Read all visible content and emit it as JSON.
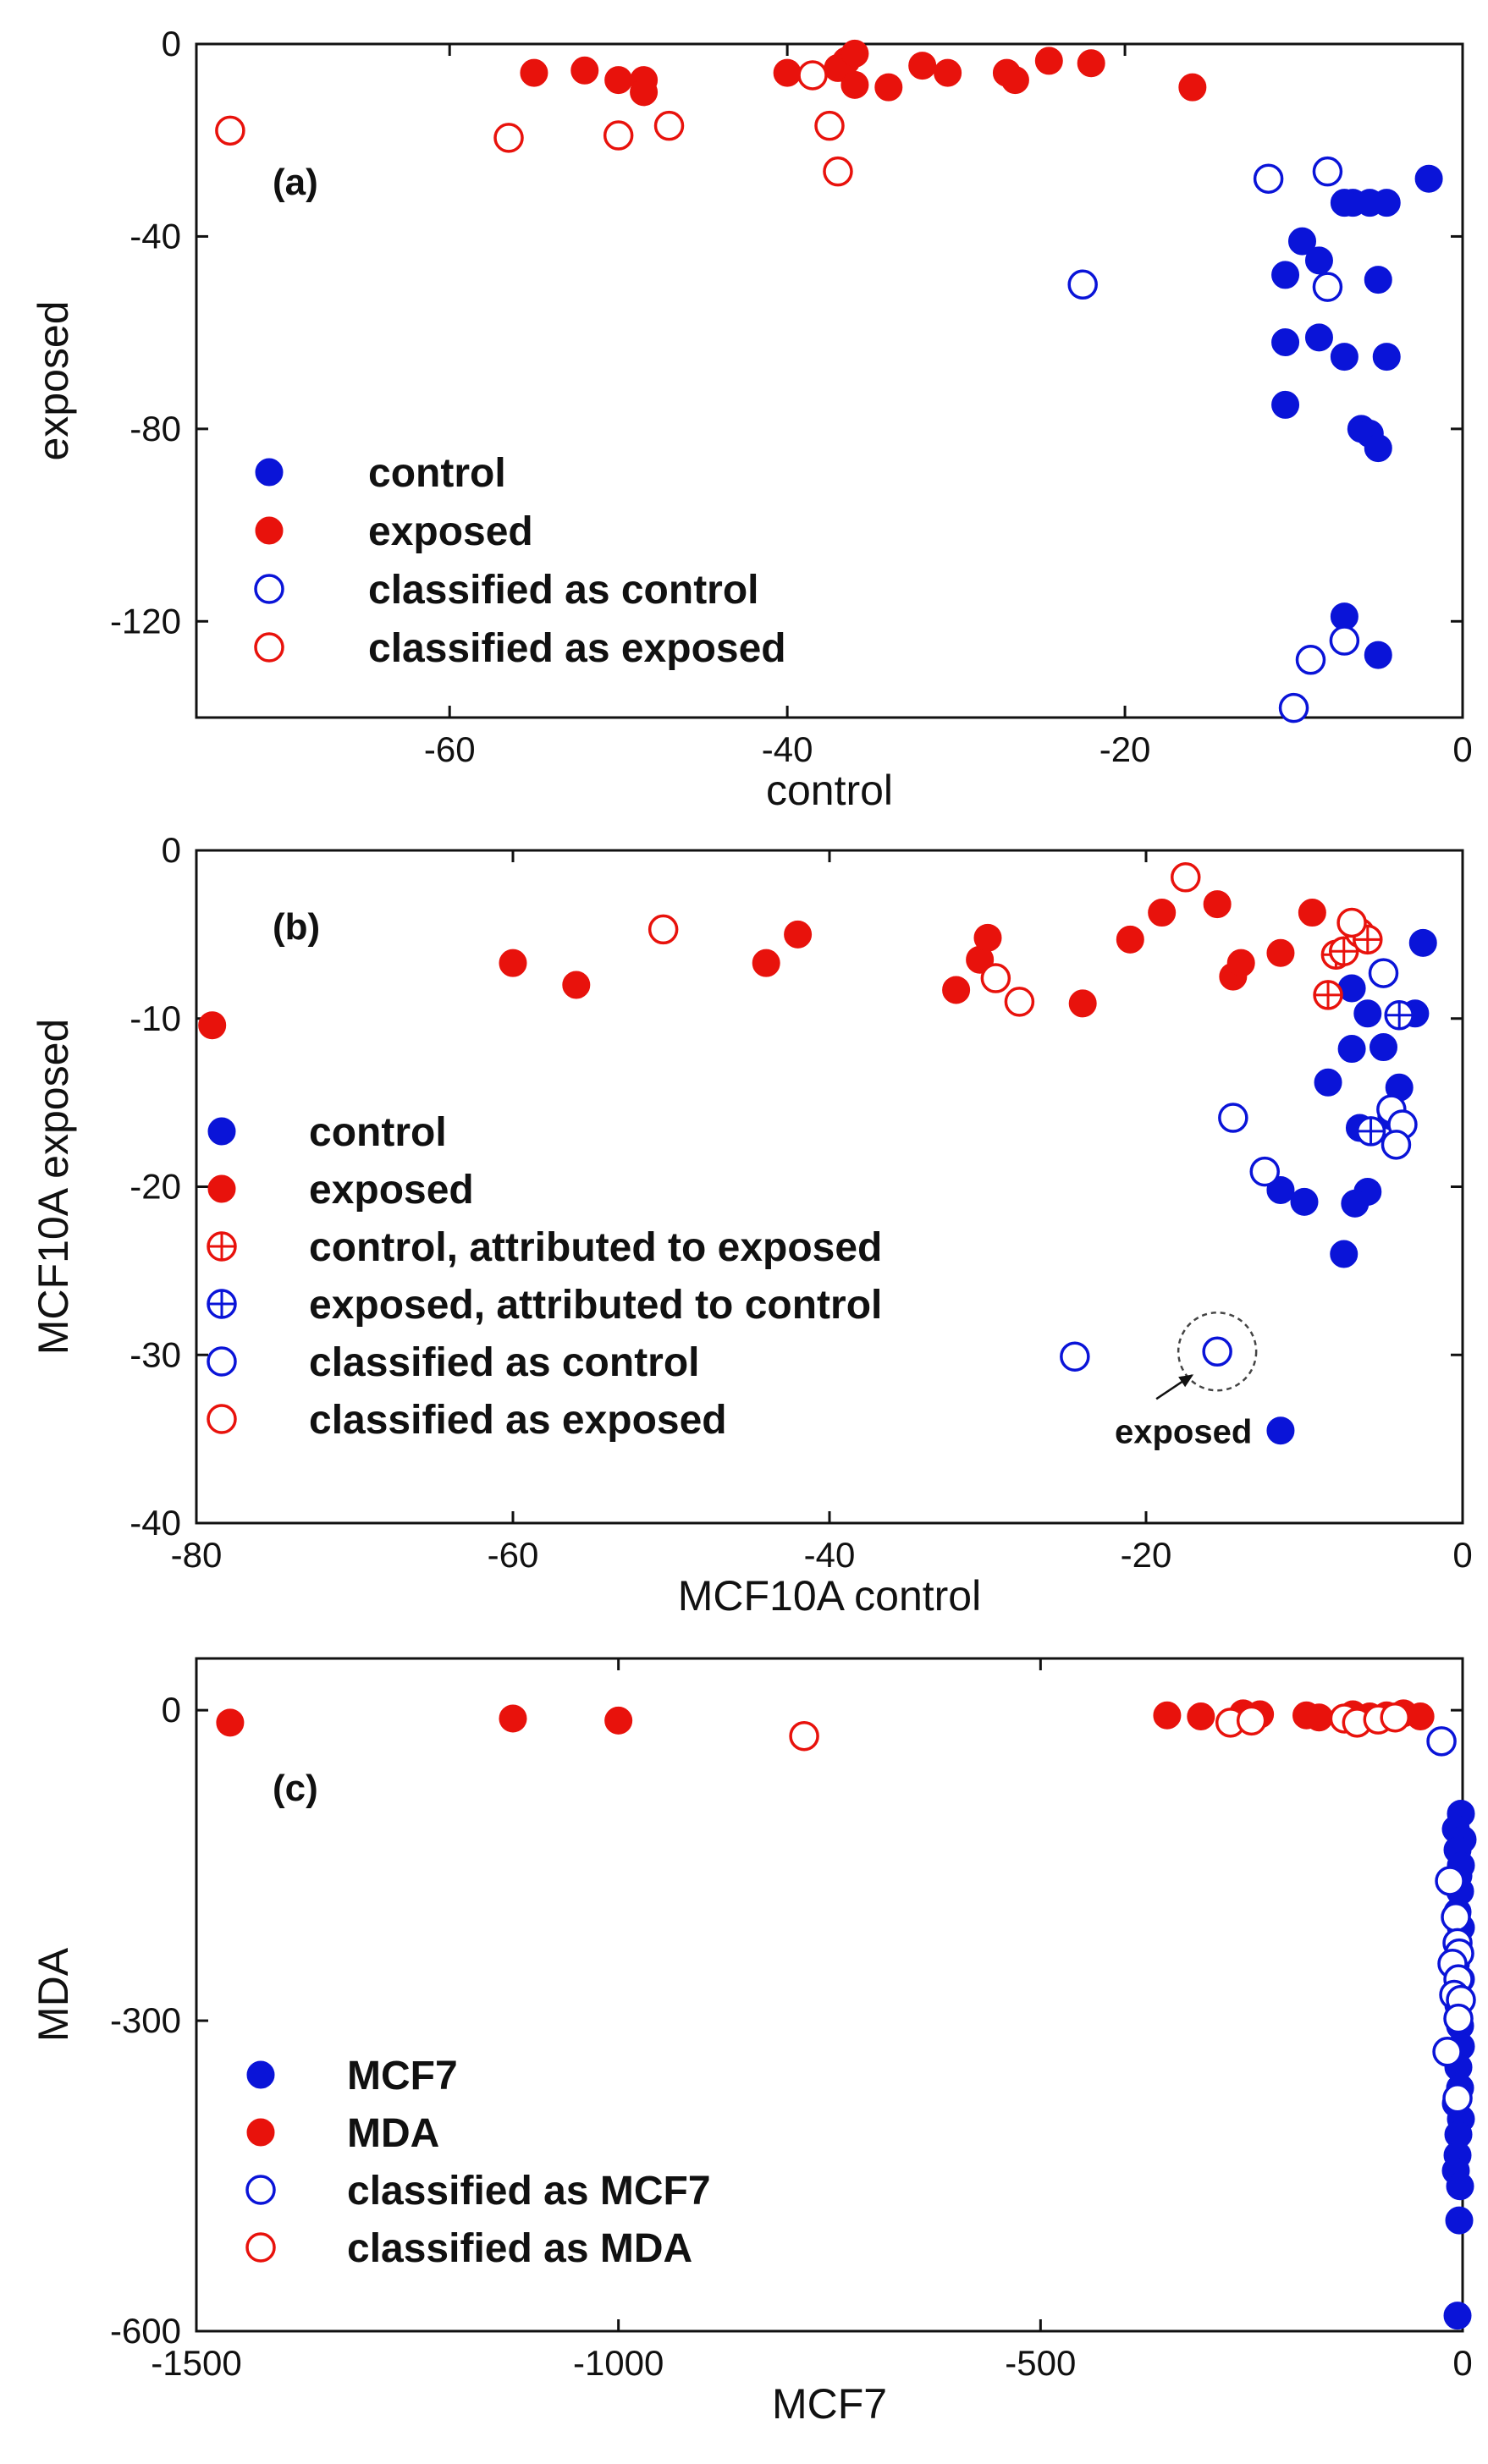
{
  "colors": {
    "control": "#0a14d8",
    "exposed": "#e8120c",
    "frame": "#111111",
    "circle": "#444444"
  },
  "chart_data": [
    {
      "id": "a",
      "type": "scatter",
      "panel_label": "(a)",
      "xlabel": "control",
      "ylabel": "exposed",
      "xlim": [
        -75,
        0
      ],
      "ylim": [
        -140,
        0
      ],
      "xticks": [
        -60,
        -40,
        -20,
        0
      ],
      "yticks": [
        0,
        -40,
        -80,
        -120
      ],
      "legend": [
        {
          "label": "control",
          "color": "control",
          "filled": true,
          "cross": false
        },
        {
          "label": "exposed",
          "color": "exposed",
          "filled": true,
          "cross": false
        },
        {
          "label": "classified as control",
          "color": "control",
          "filled": false,
          "cross": false
        },
        {
          "label": "classified as exposed",
          "color": "exposed",
          "filled": false,
          "cross": false
        }
      ],
      "series": [
        {
          "name": "control",
          "color": "control",
          "filled": true,
          "cross": false,
          "points": [
            [
              -2,
              -28
            ],
            [
              -4.5,
              -33
            ],
            [
              -5.5,
              -33
            ],
            [
              -6.5,
              -33
            ],
            [
              -7,
              -33
            ],
            [
              -9.5,
              -41
            ],
            [
              -10.5,
              -48
            ],
            [
              -8.5,
              -45
            ],
            [
              -5,
              -49
            ],
            [
              -10.5,
              -62
            ],
            [
              -8.5,
              -61
            ],
            [
              -7,
              -65
            ],
            [
              -4.5,
              -65
            ],
            [
              -10.5,
              -75
            ],
            [
              -6,
              -80
            ],
            [
              -5.5,
              -81
            ],
            [
              -5,
              -84
            ],
            [
              -7,
              -119
            ],
            [
              -5,
              -127
            ]
          ]
        },
        {
          "name": "exposed",
          "color": "exposed",
          "filled": true,
          "cross": false,
          "points": [
            [
              -55,
              -6
            ],
            [
              -52,
              -5.5
            ],
            [
              -50,
              -7.5
            ],
            [
              -48.5,
              -7.5
            ],
            [
              -48.5,
              -10
            ],
            [
              -40,
              -6
            ],
            [
              -37,
              -5
            ],
            [
              -36.5,
              -3.5
            ],
            [
              -36,
              -2
            ],
            [
              -36,
              -8.5
            ],
            [
              -34,
              -9
            ],
            [
              -32,
              -4.5
            ],
            [
              -30.5,
              -6
            ],
            [
              -27,
              -6
            ],
            [
              -26.5,
              -7.5
            ],
            [
              -24.5,
              -3.5
            ],
            [
              -22,
              -4
            ],
            [
              -16,
              -9
            ]
          ]
        },
        {
          "name": "classified as control",
          "color": "control",
          "filled": false,
          "cross": false,
          "points": [
            [
              -11.5,
              -28
            ],
            [
              -8,
              -26.5
            ],
            [
              -8,
              -50.5
            ],
            [
              -22.5,
              -50
            ],
            [
              -9,
              -128
            ],
            [
              -7,
              -124
            ],
            [
              -10,
              -138
            ]
          ]
        },
        {
          "name": "classified as exposed",
          "color": "exposed",
          "filled": false,
          "cross": false,
          "points": [
            [
              -73,
              -18
            ],
            [
              -56.5,
              -19.5
            ],
            [
              -50,
              -19
            ],
            [
              -47,
              -17
            ],
            [
              -38.5,
              -6.5
            ],
            [
              -37.5,
              -17
            ],
            [
              -37,
              -26.5
            ]
          ]
        }
      ]
    },
    {
      "id": "b",
      "type": "scatter",
      "panel_label": "(b)",
      "xlabel": "MCF10A control",
      "ylabel": "MCF10A exposed",
      "xlim": [
        -80,
        0
      ],
      "ylim": [
        -40,
        0
      ],
      "xticks": [
        -80,
        -60,
        -40,
        -20,
        0
      ],
      "yticks": [
        0,
        -10,
        -20,
        -30,
        -40
      ],
      "annotation": {
        "text": "exposed",
        "point": [
          -15.5,
          -29.8
        ]
      },
      "legend": [
        {
          "label": "control",
          "color": "control",
          "filled": true,
          "cross": false
        },
        {
          "label": "exposed",
          "color": "exposed",
          "filled": true,
          "cross": false
        },
        {
          "label": "control, attributed to exposed",
          "color": "exposed",
          "filled": false,
          "cross": true
        },
        {
          "label": "exposed, attributed to control",
          "color": "control",
          "filled": false,
          "cross": true
        },
        {
          "label": "classified as control",
          "color": "control",
          "filled": false,
          "cross": false
        },
        {
          "label": "classified as exposed",
          "color": "exposed",
          "filled": false,
          "cross": false
        }
      ],
      "series": [
        {
          "name": "control",
          "color": "control",
          "filled": true,
          "cross": false,
          "points": [
            [
              -2.5,
              -5.5
            ],
            [
              -7,
              -8.2
            ],
            [
              -3,
              -9.7
            ],
            [
              -6,
              -9.7
            ],
            [
              -5,
              -11.7
            ],
            [
              -7,
              -11.8
            ],
            [
              -4,
              -14.1
            ],
            [
              -8.5,
              -13.8
            ],
            [
              -4.5,
              -15.8
            ],
            [
              -6.5,
              -16.5
            ],
            [
              -11.5,
              -20.2
            ],
            [
              -10,
              -20.9
            ],
            [
              -6,
              -20.3
            ],
            [
              -6.8,
              -21
            ],
            [
              -7.5,
              -24
            ],
            [
              -11.5,
              -34.5
            ]
          ]
        },
        {
          "name": "exposed",
          "color": "exposed",
          "filled": true,
          "cross": false,
          "points": [
            [
              -79,
              -10.4
            ],
            [
              -60,
              -6.7
            ],
            [
              -56,
              -8
            ],
            [
              -44,
              -6.7
            ],
            [
              -42,
              -5
            ],
            [
              -32,
              -8.3
            ],
            [
              -30.5,
              -6.5
            ],
            [
              -30,
              -5.2
            ],
            [
              -24,
              -9.1
            ],
            [
              -21,
              -5.3
            ],
            [
              -19,
              -3.7
            ],
            [
              -15.5,
              -3.2
            ],
            [
              -14.5,
              -7.5
            ],
            [
              -14,
              -6.7
            ],
            [
              -11.5,
              -6.1
            ],
            [
              -9.5,
              -3.7
            ]
          ]
        },
        {
          "name": "control, attributed to exposed",
          "color": "exposed",
          "filled": false,
          "cross": true,
          "points": [
            [
              -8.5,
              -8.6
            ],
            [
              -8,
              -6.2
            ],
            [
              -7.5,
              -6
            ],
            [
              -6.5,
              -4.9
            ],
            [
              -6,
              -5.3
            ]
          ]
        },
        {
          "name": "exposed, attributed to control",
          "color": "control",
          "filled": false,
          "cross": true,
          "points": [
            [
              -4,
              -9.8
            ],
            [
              -5.8,
              -16.7
            ]
          ]
        },
        {
          "name": "classified as control",
          "color": "control",
          "filled": false,
          "cross": false,
          "points": [
            [
              -14.5,
              -15.9
            ],
            [
              -12.5,
              -19.1
            ],
            [
              -24.5,
              -30.1
            ],
            [
              -15.5,
              -29.8
            ],
            [
              -5,
              -7.3
            ],
            [
              -4.5,
              -15.4
            ],
            [
              -3.8,
              -16.3
            ],
            [
              -4.2,
              -17.5
            ]
          ]
        },
        {
          "name": "classified as exposed",
          "color": "exposed",
          "filled": false,
          "cross": false,
          "points": [
            [
              -50.5,
              -4.7
            ],
            [
              -29.5,
              -7.6
            ],
            [
              -28,
              -9
            ],
            [
              -17.5,
              -1.6
            ],
            [
              -7,
              -4.3
            ]
          ]
        }
      ]
    },
    {
      "id": "c",
      "type": "scatter",
      "panel_label": "(c)",
      "xlabel": "MCF7",
      "ylabel": "MDA",
      "xlim": [
        -1500,
        0
      ],
      "ylim": [
        -600,
        50
      ],
      "xticks": [
        -1500,
        -1000,
        -500,
        0
      ],
      "yticks": [
        0,
        -300,
        -600
      ],
      "legend": [
        {
          "label": "MCF7",
          "color": "control",
          "filled": true,
          "cross": false
        },
        {
          "label": "MDA",
          "color": "exposed",
          "filled": true,
          "cross": false
        },
        {
          "label": "classified as MCF7",
          "color": "control",
          "filled": false,
          "cross": false
        },
        {
          "label": "classified as MDA",
          "color": "exposed",
          "filled": false,
          "cross": false
        }
      ],
      "series": [
        {
          "name": "MCF7",
          "color": "control",
          "filled": true,
          "cross": false,
          "points": [
            [
              -2,
              -100
            ],
            [
              -8,
              -115
            ],
            [
              0,
              -125
            ],
            [
              -6,
              -135
            ],
            [
              -2,
              -150
            ],
            [
              -5,
              -160
            ],
            [
              -3,
              -175
            ],
            [
              -6,
              -195
            ],
            [
              -2,
              -210
            ],
            [
              -5,
              -228
            ],
            [
              -8,
              -245
            ],
            [
              -2,
              -260
            ],
            [
              -5,
              -285
            ],
            [
              -3,
              -305
            ],
            [
              -2,
              -325
            ],
            [
              -5,
              -345
            ],
            [
              -3,
              -365
            ],
            [
              -8,
              -380
            ],
            [
              -2,
              -395
            ],
            [
              -5,
              -410
            ],
            [
              -6,
              -430
            ],
            [
              -8,
              -445
            ],
            [
              -3,
              -460
            ],
            [
              -4,
              -493
            ],
            [
              -6,
              -585
            ]
          ]
        },
        {
          "name": "MDA",
          "color": "exposed",
          "filled": true,
          "cross": false,
          "points": [
            [
              -1460,
              -12
            ],
            [
              -1125,
              -8
            ],
            [
              -1000,
              -10
            ],
            [
              -350,
              -5
            ],
            [
              -310,
              -6
            ],
            [
              -260,
              -3
            ],
            [
              -240,
              -4
            ],
            [
              -185,
              -5
            ],
            [
              -170,
              -7
            ],
            [
              -130,
              -4
            ],
            [
              -110,
              -6
            ],
            [
              -90,
              -5
            ],
            [
              -70,
              -3
            ],
            [
              -50,
              -6
            ]
          ]
        },
        {
          "name": "classified as MCF7",
          "color": "control",
          "filled": false,
          "cross": false,
          "points": [
            [
              -25,
              -30
            ],
            [
              -15,
              -165
            ],
            [
              -8,
              -200
            ],
            [
              -6,
              -225
            ],
            [
              -4,
              -235
            ],
            [
              -12,
              -245
            ],
            [
              -5,
              -260
            ],
            [
              -10,
              -275
            ],
            [
              -2,
              -280
            ],
            [
              -5,
              -298
            ],
            [
              -18,
              -330
            ],
            [
              -6,
              -375
            ]
          ]
        },
        {
          "name": "classified as MDA",
          "color": "exposed",
          "filled": false,
          "cross": false,
          "points": [
            [
              -780,
              -25
            ],
            [
              -275,
              -12
            ],
            [
              -250,
              -10
            ],
            [
              -140,
              -8
            ],
            [
              -125,
              -12
            ],
            [
              -100,
              -9
            ],
            [
              -80,
              -7
            ]
          ]
        }
      ]
    }
  ]
}
